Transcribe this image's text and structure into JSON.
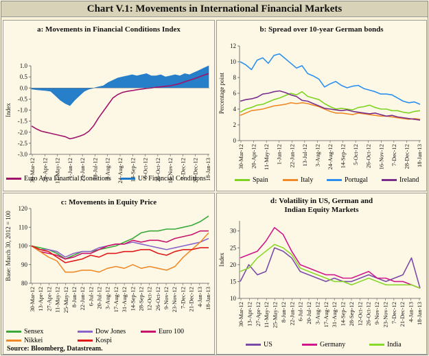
{
  "title": "Chart V.1: Movements in International Financial Markets",
  "source": {
    "label": "Source:",
    "text": "Bloomberg, Datastream."
  },
  "colors": {
    "euro_fci": "#a0116a",
    "us_fci": "#1b78c8",
    "spain": "#7ed320",
    "italy": "#f08a28",
    "portugal": "#2b8ff0",
    "ireland": "#7a2e8c",
    "sensex": "#3aa83a",
    "dowjones": "#8a64c8",
    "euro100": "#c8106a",
    "nikkei": "#f08a28",
    "kospi": "#e01818",
    "us_vol": "#7a4aa8",
    "germany_vol": "#d0168a",
    "india_vol": "#88d82a"
  },
  "chart_data": [
    {
      "id": "a",
      "type": "area",
      "title": "a: Movements in Financial Conditions Index",
      "ylabel": "Index",
      "ylim": [
        -3.0,
        1.0
      ],
      "yticks": [
        "1.0",
        "0.5",
        "0.0",
        "-0.5",
        "-1.0",
        "-1.5",
        "-2.0",
        "-2.5",
        "-3.0"
      ],
      "ytick_values": [
        1.0,
        0.5,
        0.0,
        -0.5,
        -1.0,
        -1.5,
        -2.0,
        -2.5,
        -3.0
      ],
      "xticks": [
        "30-Mar-12",
        "20-Apr-12",
        "11-May-12",
        "1-Jun-12",
        "22-Jun-12",
        "13-Jul-12",
        "3-Aug-12",
        "24-Aug-12",
        "14-Sep-12",
        "5-Oct-12",
        "26-Oct-12",
        "16-Nov-12",
        "7-Dec-12",
        "28-Dec-12",
        "18-Jan-13"
      ],
      "series": [
        {
          "name": "Euro Area Financial Conditions",
          "color_key": "euro_fci",
          "kind": "line",
          "values": [
            -1.72,
            -1.85,
            -1.95,
            -2.0,
            -2.05,
            -2.1,
            -2.15,
            -2.2,
            -2.3,
            -2.25,
            -2.18,
            -2.1,
            -1.95,
            -1.7,
            -1.35,
            -1.05,
            -0.75,
            -0.45,
            -0.3,
            -0.2,
            -0.15,
            -0.12,
            -0.08,
            -0.05,
            -0.02,
            0.0,
            0.03,
            0.05,
            0.08,
            0.1,
            0.15,
            0.2,
            0.28,
            0.35,
            0.42,
            0.5,
            0.58,
            0.65
          ]
        },
        {
          "name": "US Financial Conditions",
          "color_key": "us_fci",
          "kind": "area",
          "values": [
            -0.05,
            -0.08,
            -0.1,
            -0.12,
            -0.15,
            -0.35,
            -0.55,
            -0.7,
            -0.8,
            -0.55,
            -0.35,
            -0.15,
            -0.05,
            0.0,
            0.05,
            0.1,
            0.25,
            0.35,
            0.45,
            0.5,
            0.55,
            0.6,
            0.55,
            0.6,
            0.65,
            0.55,
            0.55,
            0.6,
            0.5,
            0.55,
            0.6,
            0.55,
            0.65,
            0.6,
            0.7,
            0.8,
            0.9,
            1.0
          ]
        }
      ]
    },
    {
      "id": "b",
      "type": "line",
      "title": "b: Spread over 10-year German bonds",
      "ylabel": "Percentage point",
      "ylim": [
        0,
        12
      ],
      "yticks": [
        "12",
        "10",
        "8",
        "6",
        "4",
        "2",
        "0"
      ],
      "ytick_values": [
        12,
        10,
        8,
        6,
        4,
        2,
        0
      ],
      "xticks": [
        "30-Mar-12",
        "20-Apr-12",
        "11-May-12",
        "1-Jun-12",
        "22-Jun-12",
        "13-Jul-12",
        "3-Aug-12",
        "24-Aug-12",
        "14-Sep-12",
        "5-Oct-12",
        "26-Oct-12",
        "16-Nov-12",
        "7-Dec-12",
        "28-Dec-12",
        "18-Jan-13"
      ],
      "series": [
        {
          "name": "Spain",
          "color_key": "spain",
          "values": [
            3.6,
            4.0,
            4.2,
            4.5,
            4.6,
            4.9,
            5.2,
            5.4,
            5.7,
            6.0,
            5.8,
            6.2,
            5.6,
            5.4,
            5.2,
            4.7,
            4.3,
            4.0,
            4.1,
            4.0,
            3.9,
            4.2,
            4.3,
            4.5,
            4.2,
            4.0,
            4.0,
            3.8,
            3.8,
            3.6,
            3.5,
            3.7,
            3.8
          ]
        },
        {
          "name": "Italy",
          "color_key": "italy",
          "values": [
            3.2,
            3.5,
            3.8,
            3.9,
            4.0,
            4.2,
            4.4,
            4.5,
            4.6,
            4.8,
            4.7,
            4.8,
            4.7,
            4.5,
            4.3,
            4.0,
            3.7,
            3.5,
            3.5,
            3.4,
            3.3,
            3.5,
            3.4,
            3.3,
            3.2,
            3.1,
            3.1,
            3.0,
            2.9,
            2.8,
            2.7,
            2.8,
            2.7
          ]
        },
        {
          "name": "Portugal",
          "color_key": "portugal",
          "values": [
            10.0,
            9.6,
            9.0,
            10.2,
            10.5,
            9.8,
            10.8,
            11.0,
            10.4,
            9.8,
            9.2,
            9.5,
            8.5,
            8.2,
            7.8,
            6.8,
            7.2,
            7.5,
            7.0,
            6.7,
            6.9,
            7.0,
            6.6,
            6.4,
            6.2,
            5.9,
            5.9,
            5.8,
            5.4,
            5.0,
            4.8,
            4.9,
            4.6
          ]
        },
        {
          "name": "Ireland",
          "color_key": "ireland",
          "values": [
            5.0,
            5.2,
            5.3,
            5.5,
            5.9,
            6.0,
            6.2,
            6.3,
            6.1,
            5.8,
            5.6,
            5.1,
            5.0,
            4.7,
            4.4,
            4.1,
            4.0,
            3.9,
            3.8,
            3.9,
            3.7,
            3.6,
            3.5,
            3.4,
            3.5,
            3.3,
            3.1,
            3.2,
            3.0,
            2.9,
            2.8,
            2.7,
            2.6
          ]
        }
      ]
    },
    {
      "id": "c",
      "type": "line",
      "title": "c: Movements in Equity Price",
      "ylabel": "Base: March 30, 2012 = 100",
      "ylim": [
        80,
        120
      ],
      "yticks": [
        "120",
        "110",
        "100",
        "90",
        "80"
      ],
      "ytick_values": [
        120,
        110,
        100,
        90,
        80
      ],
      "xticks": [
        "30-Mar-12",
        "13-Apr-12",
        "27-Apr-12",
        "11-May-12",
        "25-May-12",
        "8-Jun-12",
        "22-Jun-12",
        "6-Jul-12",
        "20-Jul-12",
        "3-Aug-12",
        "17-Aug-12",
        "31-Aug-12",
        "14-Sep-12",
        "28-Sep-12",
        "12-Oct-12",
        "26-Oct-12",
        "9-Nov-12",
        "23-Nov-12",
        "7-Dec-12",
        "21-Dec-12",
        "4-Jan-13",
        "18-Jan-13"
      ],
      "series": [
        {
          "name": "Sensex",
          "color_key": "sensex",
          "values": [
            100,
            99,
            98,
            96,
            93,
            95,
            97,
            97,
            98,
            99,
            100,
            102,
            104,
            107,
            108,
            108,
            109,
            109,
            110,
            111,
            113,
            116
          ]
        },
        {
          "name": "Dow Jones",
          "color_key": "dowjones",
          "values": [
            100,
            98,
            98,
            97,
            94,
            96,
            97,
            97,
            99,
            100,
            101,
            101,
            102,
            101,
            100,
            99,
            98,
            99,
            100,
            101,
            102,
            104
          ]
        },
        {
          "name": "Euro 100",
          "color_key": "euro100",
          "values": [
            100,
            97,
            96,
            95,
            93,
            94,
            96,
            96,
            98,
            100,
            101,
            101,
            103,
            102,
            103,
            103,
            102,
            104,
            105,
            106,
            108,
            108
          ]
        },
        {
          "name": "Nikkei",
          "color_key": "nikkei",
          "values": [
            100,
            97,
            94,
            92,
            86,
            86,
            87,
            87,
            86,
            88,
            89,
            88,
            90,
            88,
            89,
            88,
            87,
            89,
            94,
            98,
            102,
            107
          ]
        },
        {
          "name": "Kospi",
          "color_key": "kospi",
          "values": [
            100,
            98,
            97,
            94,
            91,
            92,
            93,
            95,
            94,
            96,
            96,
            97,
            97,
            98,
            98,
            96,
            95,
            97,
            98,
            98,
            99,
            99
          ]
        }
      ]
    },
    {
      "id": "d",
      "type": "line",
      "title": "d: Volatility in US, German and Indian Equity Markets",
      "title_lines": [
        "d: Volatility in US, German and",
        "Indian Equity Markets"
      ],
      "ylabel": "Index",
      "ylim": [
        10,
        33
      ],
      "yticks": [
        "30",
        "25",
        "20",
        "15",
        "10"
      ],
      "ytick_values": [
        30,
        25,
        20,
        15,
        10
      ],
      "xticks": [
        "30-Mar-12",
        "13-Apr-12",
        "27-Apr-12",
        "11-May-12",
        "25-May-12",
        "8-Jun-12",
        "22-Jun-12",
        "6-Jul-12",
        "20-Jul-12",
        "3-Aug-12",
        "17-Aug-12",
        "31-Aug-12",
        "14-Sep-12",
        "28-Sep-12",
        "12-Oct-12",
        "26-Oct-12",
        "9-Nov-12",
        "23-Nov-12",
        "7-Dec-12",
        "21-Dec-12",
        "4-Jan-13",
        "18-Jan-13"
      ],
      "series": [
        {
          "name": "US",
          "color_key": "us_vol",
          "values": [
            15,
            20,
            17,
            18,
            25,
            24,
            22,
            18,
            17,
            16,
            15,
            16,
            15,
            15,
            16,
            17,
            16,
            15,
            16,
            17,
            22,
            13
          ]
        },
        {
          "name": "Germany",
          "color_key": "germany_vol",
          "values": [
            22,
            23,
            24,
            27,
            31,
            29,
            24,
            20,
            19,
            18,
            17,
            17,
            16,
            16,
            17,
            18,
            16,
            16,
            15,
            15,
            14,
            13
          ]
        },
        {
          "name": "India",
          "color_key": "india_vol",
          "values": [
            18,
            19,
            22,
            24,
            26,
            25,
            23,
            19,
            18,
            17,
            16,
            15,
            15,
            14,
            15,
            16,
            15,
            14,
            14,
            14,
            14,
            13
          ]
        }
      ]
    }
  ]
}
